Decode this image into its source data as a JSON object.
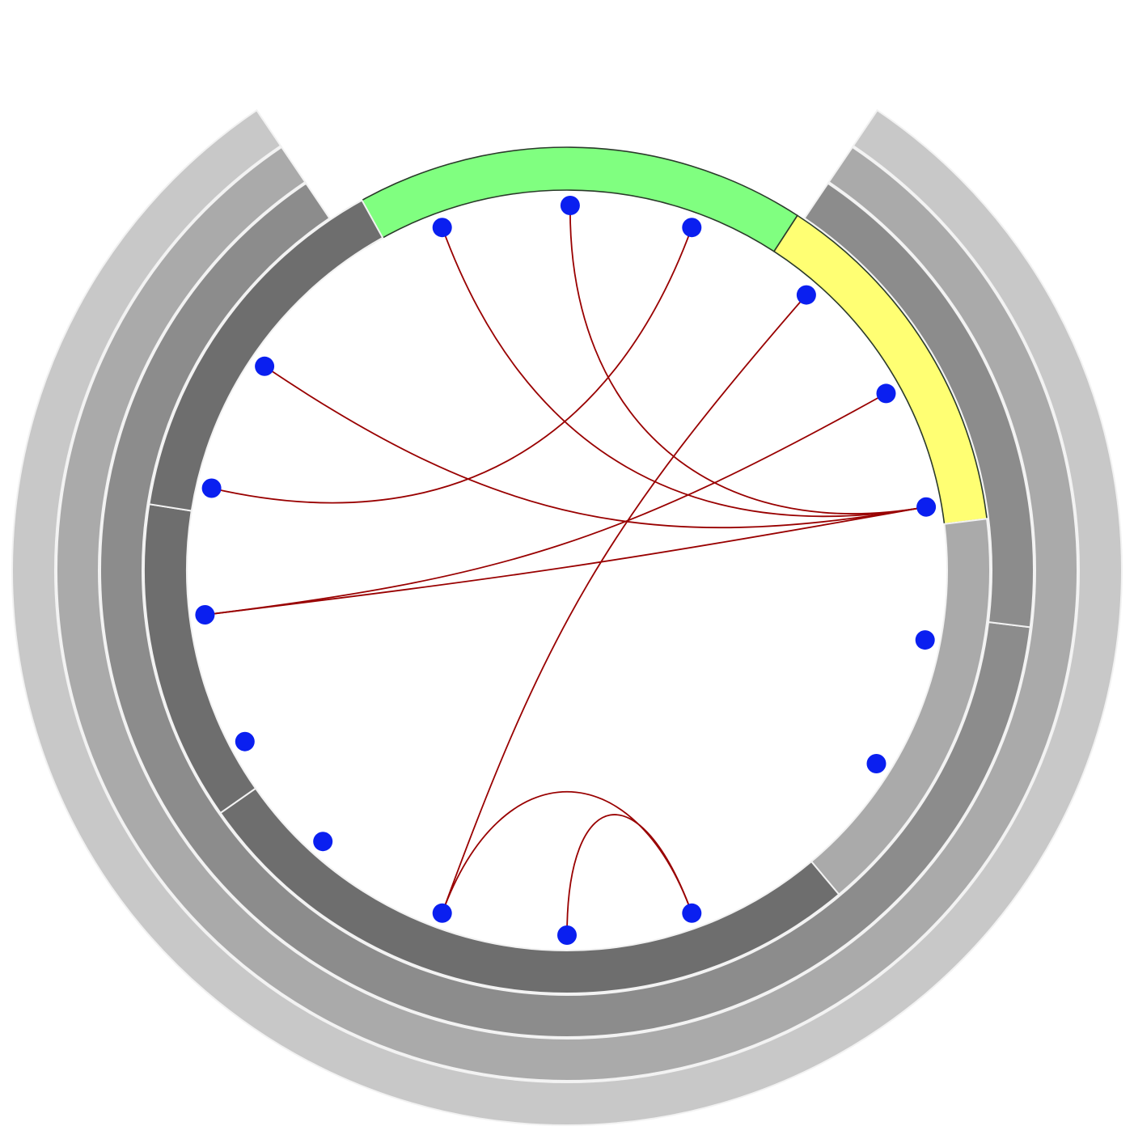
{
  "colors": {
    "background": "#ffffff",
    "ring_separator": "#f2f2f2",
    "edge": "#990000",
    "node": "#0a1ff0",
    "highlight_green": "#80ff80",
    "highlight_yellow": "#ffff73",
    "highlight_outline": "#2a3a2a"
  },
  "rings": [
    {
      "name": "ring-outer",
      "arcs": [
        {
          "name": "arc-level1-main",
          "start_deg": 34,
          "end_deg": 326,
          "color": "#c8c8c8"
        }
      ]
    },
    {
      "name": "ring-third",
      "arcs": [
        {
          "name": "arc-level2-main",
          "start_deg": 34,
          "end_deg": 326,
          "color": "#aaaaaa"
        }
      ]
    },
    {
      "name": "ring-second",
      "arcs": [
        {
          "name": "arc-level3-upper",
          "start_deg": 97,
          "end_deg": 326,
          "color": "#8c8c8c"
        },
        {
          "name": "arc-level3-lower",
          "start_deg": 34,
          "end_deg": 97,
          "color": "#8c8c8c"
        }
      ]
    },
    {
      "name": "ring-inner",
      "arcs": [
        {
          "name": "arc-level4-green",
          "start_deg": 328,
          "end_deg": 33,
          "color": "#80ff80",
          "outlined": true
        },
        {
          "name": "arc-level4-yellow",
          "start_deg": 33,
          "end_deg": 83,
          "color": "#ffff73",
          "outlined": true
        },
        {
          "name": "arc-level4-right",
          "start_deg": 83,
          "end_deg": 140,
          "color": "#aaaaaa"
        },
        {
          "name": "arc-level4-bottom",
          "start_deg": 140,
          "end_deg": 235,
          "color": "#6e6e6e"
        },
        {
          "name": "arc-level4-left",
          "start_deg": 235,
          "end_deg": 279,
          "color": "#6e6e6e"
        },
        {
          "name": "arc-level4-upper-left",
          "start_deg": 279,
          "end_deg": 331,
          "color": "#6e6e6e"
        }
      ]
    }
  ],
  "nodes": [
    {
      "id": "n01",
      "angle_deg": 0.5
    },
    {
      "id": "n02",
      "angle_deg": 20
    },
    {
      "id": "n03",
      "angle_deg": 41
    },
    {
      "id": "n04",
      "angle_deg": 61
    },
    {
      "id": "n05",
      "angle_deg": 80
    },
    {
      "id": "n06",
      "angle_deg": 101
    },
    {
      "id": "n07",
      "angle_deg": 122
    },
    {
      "id": "n08",
      "angle_deg": 160
    },
    {
      "id": "n09",
      "angle_deg": 180
    },
    {
      "id": "n10",
      "angle_deg": 200
    },
    {
      "id": "n11",
      "angle_deg": 222
    },
    {
      "id": "n12",
      "angle_deg": 242
    },
    {
      "id": "n13",
      "angle_deg": 263
    },
    {
      "id": "n14",
      "angle_deg": 283
    },
    {
      "id": "n15",
      "angle_deg": 304
    },
    {
      "id": "n16",
      "angle_deg": 340
    }
  ],
  "edges": [
    {
      "source": "n16",
      "target": "n05"
    },
    {
      "source": "n01",
      "target": "n05"
    },
    {
      "source": "n02",
      "target": "n14"
    },
    {
      "source": "n15",
      "target": "n05"
    },
    {
      "source": "n13",
      "target": "n05"
    },
    {
      "source": "n04",
      "target": "n13"
    },
    {
      "source": "n03",
      "target": "n10"
    },
    {
      "source": "n10",
      "target": "n08"
    },
    {
      "source": "n09",
      "target": "n08"
    }
  ]
}
